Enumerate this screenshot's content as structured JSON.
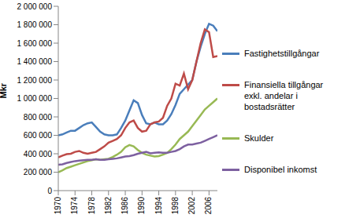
{
  "chart_data": {
    "type": "line",
    "y_label": "Mkr",
    "grid": false,
    "legend": "right",
    "x": [
      1970,
      1971,
      1972,
      1973,
      1974,
      1975,
      1976,
      1977,
      1978,
      1979,
      1980,
      1981,
      1982,
      1983,
      1984,
      1985,
      1986,
      1987,
      1988,
      1989,
      1990,
      1991,
      1992,
      1993,
      1994,
      1995,
      1996,
      1997,
      1998,
      1999,
      2000,
      2001,
      2002,
      2003,
      2004,
      2005,
      2006,
      2007,
      2008
    ],
    "xlim": [
      1970,
      2008
    ],
    "xticks": [
      1970,
      1974,
      1978,
      1982,
      1986,
      1990,
      1994,
      1998,
      2002,
      2006
    ],
    "ylim": [
      0,
      2000000
    ],
    "yticks": [
      0,
      {
        "value": 200000,
        "label": "200 000"
      },
      {
        "value": 400000,
        "label": "400 000"
      },
      {
        "value": 600000,
        "label": "600 000"
      },
      {
        "value": 800000,
        "label": "800 000"
      },
      {
        "value": 1000000,
        "label": "1 000 000"
      },
      {
        "value": 1200000,
        "label": "1 200 000"
      },
      {
        "value": 1400000,
        "label": "1 400 000"
      },
      {
        "value": 1600000,
        "label": "1 600 000"
      },
      {
        "value": 1800000,
        "label": "1 800 000"
      },
      {
        "value": 2000000,
        "label": "2 000 000"
      }
    ],
    "series": [
      {
        "name": "Fastighetstillgångar",
        "color": "#4a7ebb",
        "values": [
          600000,
          610000,
          630000,
          650000,
          650000,
          680000,
          710000,
          730000,
          740000,
          690000,
          640000,
          610000,
          600000,
          600000,
          610000,
          680000,
          760000,
          870000,
          980000,
          950000,
          820000,
          730000,
          720000,
          740000,
          720000,
          720000,
          760000,
          830000,
          930000,
          1050000,
          1100000,
          1150000,
          1200000,
          1400000,
          1560000,
          1700000,
          1810000,
          1790000,
          1730000
        ]
      },
      {
        "name": "Finansiella tillgångar exkl. andelar i bostadsrätter",
        "color": "#be4b48",
        "values": [
          360000,
          380000,
          395000,
          400000,
          420000,
          430000,
          410000,
          400000,
          410000,
          420000,
          450000,
          480000,
          520000,
          540000,
          560000,
          600000,
          680000,
          740000,
          760000,
          680000,
          640000,
          650000,
          720000,
          740000,
          750000,
          790000,
          920000,
          1000000,
          1160000,
          1140000,
          1270000,
          1100000,
          1200000,
          1400000,
          1600000,
          1750000,
          1720000,
          1450000,
          1460000
        ]
      },
      {
        "name": "Skulder",
        "color": "#98b954",
        "values": [
          200000,
          220000,
          245000,
          260000,
          275000,
          290000,
          305000,
          320000,
          330000,
          340000,
          335000,
          340000,
          345000,
          365000,
          390000,
          420000,
          470000,
          495000,
          480000,
          440000,
          410000,
          390000,
          380000,
          370000,
          375000,
          390000,
          410000,
          450000,
          500000,
          560000,
          600000,
          640000,
          700000,
          760000,
          820000,
          880000,
          920000,
          960000,
          1000000
        ]
      },
      {
        "name": "Disponibel inkomst",
        "color": "#7d60a0",
        "values": [
          280000,
          285000,
          300000,
          310000,
          320000,
          325000,
          330000,
          335000,
          335000,
          340000,
          335000,
          335000,
          340000,
          345000,
          350000,
          360000,
          370000,
          375000,
          385000,
          400000,
          410000,
          420000,
          405000,
          410000,
          415000,
          410000,
          410000,
          420000,
          430000,
          450000,
          480000,
          500000,
          500000,
          510000,
          520000,
          540000,
          560000,
          580000,
          600000
        ]
      }
    ]
  }
}
